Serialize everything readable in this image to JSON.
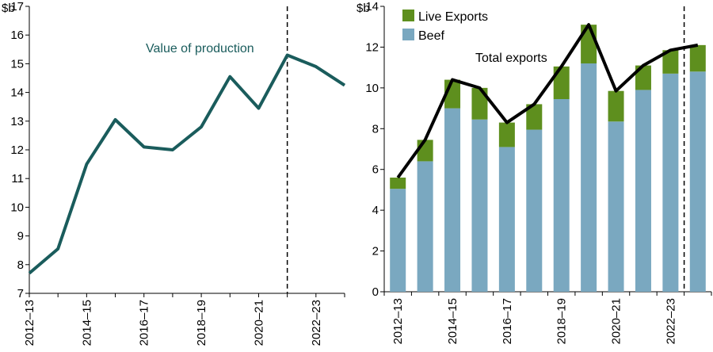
{
  "chart_data": [
    {
      "type": "line",
      "title": "",
      "unit_label": "$b",
      "annotation": "Value of production",
      "x": [
        "2012–13",
        "2013–14",
        "2014–15",
        "2015–16",
        "2016–17",
        "2017–18",
        "2018–19",
        "2019–20",
        "2020–21",
        "2021–22",
        "2022–23",
        "2023–24"
      ],
      "tick_labels": [
        "2012–13",
        "2014–15",
        "2016–17",
        "2018–19",
        "2020–21",
        "2022–23"
      ],
      "series": [
        {
          "name": "Value of production",
          "values": [
            7.7,
            8.55,
            11.5,
            13.05,
            12.1,
            12.0,
            12.8,
            14.55,
            13.45,
            15.3,
            14.9,
            14.25
          ]
        }
      ],
      "ylim": [
        7,
        17
      ],
      "yticks": [
        7,
        8,
        9,
        10,
        11,
        12,
        13,
        14,
        15,
        16,
        17
      ],
      "forecast_after": "2021–22",
      "colors": {
        "line": "#1a5c5c"
      }
    },
    {
      "type": "bar",
      "stacked": true,
      "title": "",
      "unit_label": "$b",
      "categories": [
        "2012–13",
        "2013–14",
        "2014–15",
        "2015–16",
        "2016–17",
        "2017–18",
        "2018–19",
        "2019–20",
        "2020–21",
        "2021–22",
        "2022–23",
        "2023–24"
      ],
      "tick_labels": [
        "2012–13",
        "2014–15",
        "2016–17",
        "2018–19",
        "2020–21",
        "2022–23"
      ],
      "series": [
        {
          "name": "Beef",
          "values": [
            5.05,
            6.4,
            9.0,
            8.45,
            7.1,
            7.95,
            9.45,
            11.2,
            8.35,
            9.9,
            10.7,
            10.8
          ],
          "color": "#7aa8c0"
        },
        {
          "name": "Live Exports",
          "values": [
            0.55,
            1.05,
            1.4,
            1.55,
            1.2,
            1.25,
            1.6,
            1.9,
            1.5,
            1.2,
            1.15,
            1.3
          ],
          "color": "#5e8f1e"
        }
      ],
      "line_series": {
        "name": "Total exports",
        "values": [
          5.6,
          7.45,
          10.4,
          10.0,
          8.3,
          9.2,
          11.05,
          13.1,
          9.85,
          11.1,
          11.85,
          12.1
        ],
        "color": "#000000"
      },
      "annotation": "Total exports",
      "legend": [
        "Live Exports",
        "Beef"
      ],
      "ylim": [
        0,
        14
      ],
      "yticks": [
        0,
        2,
        4,
        6,
        8,
        10,
        12,
        14
      ],
      "forecast_after": "2022–23"
    }
  ]
}
